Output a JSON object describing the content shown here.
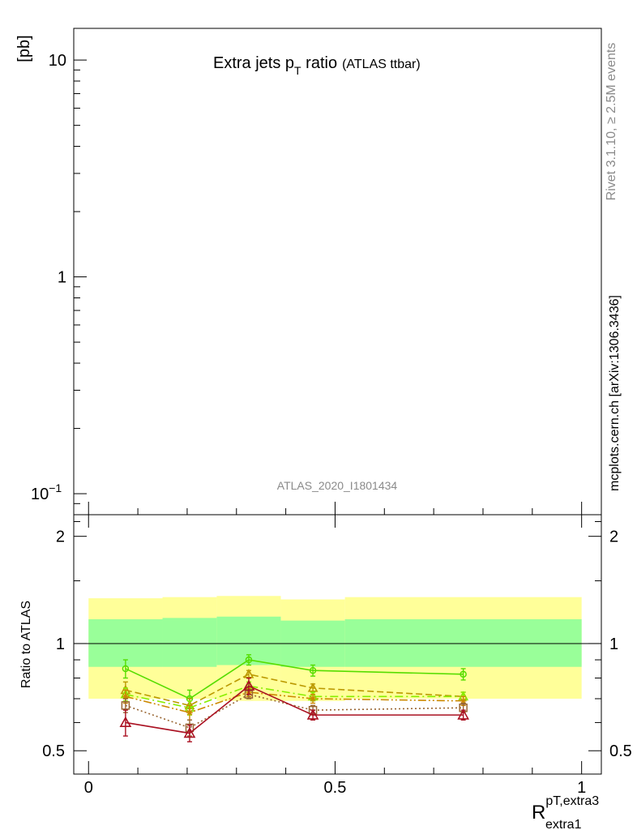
{
  "chart_data": {
    "type": "line",
    "title_main": "Extra jets p",
    "title_sub_T": "T",
    "title_rest": " ratio",
    "title_small": "(ATLAS ttbar)",
    "analysis_label": "ATLAS_2020_I1801434",
    "side_text_1": "Rivet 3.1.10, ≥ 2.5M events",
    "side_text_2": "mcplots.cern.ch [arXiv:1306.3436]",
    "top_panel": {
      "ylabel": "[pb]",
      "yscale": "log",
      "ylim": [
        0.08,
        14
      ],
      "yticks": [
        {
          "value": 10,
          "label": "10"
        },
        {
          "value": 1,
          "label": "1"
        },
        {
          "value": 0.1,
          "label_base": "10",
          "label_exp": "−1"
        }
      ]
    },
    "ratio_panel": {
      "ylabel": "Ratio to ATLAS",
      "yscale": "log",
      "ylim": [
        0.43,
        2.3
      ],
      "yticks": [
        {
          "value": 2,
          "label": "2"
        },
        {
          "value": 1,
          "label": "1"
        },
        {
          "value": 0.5,
          "label": "0.5"
        }
      ],
      "reference_line": 1,
      "bands": {
        "bins": [
          0,
          0.15,
          0.26,
          0.39,
          0.52,
          1.0
        ],
        "outer_lo": [
          0.7,
          0.7,
          0.69,
          0.69,
          0.7
        ],
        "outer_hi": [
          1.34,
          1.35,
          1.36,
          1.33,
          1.35
        ],
        "inner_lo": [
          0.86,
          0.86,
          0.87,
          0.86,
          0.86
        ],
        "inner_hi": [
          1.17,
          1.18,
          1.19,
          1.16,
          1.17
        ],
        "outer_color": "#ffff99",
        "inner_color": "#99ff99"
      }
    },
    "x_axis": {
      "label_main": "R",
      "label_super": "pT,extra3",
      "label_sub": "extra1",
      "xlim": [
        -0.03,
        1.04
      ],
      "ticks": [
        {
          "value": 0,
          "label": "0"
        },
        {
          "value": 0.5,
          "label": "0.5"
        },
        {
          "value": 1,
          "label": "1"
        }
      ]
    },
    "x": [
      0.075,
      0.205,
      0.325,
      0.455,
      0.76
    ],
    "series": [
      {
        "color": "#55dd00",
        "marker": "circle",
        "dash": "",
        "values": [
          0.85,
          0.7,
          0.9,
          0.84,
          0.82
        ],
        "errors": [
          0.05,
          0.04,
          0.03,
          0.03,
          0.03
        ]
      },
      {
        "color": "#bb9900",
        "marker": "triangle",
        "dash": "8,4",
        "values": [
          0.74,
          0.67,
          0.82,
          0.75,
          0.71
        ],
        "errors": [
          0.04,
          0.03,
          0.02,
          0.02,
          0.02
        ]
      },
      {
        "color": "#88ee00",
        "marker": "triangle",
        "dash": "10,4,2,4",
        "values": [
          0.72,
          0.66,
          0.76,
          0.71,
          0.71
        ],
        "errors": [
          0.03,
          0.03,
          0.02,
          0.02,
          0.02
        ]
      },
      {
        "color": "#cc8800",
        "marker": "star",
        "dash": "10,3,2,3,2,3",
        "values": [
          0.71,
          0.64,
          0.73,
          0.7,
          0.69
        ],
        "errors": [
          0.03,
          0.03,
          0.02,
          0.02,
          0.02
        ]
      },
      {
        "color": "#996633",
        "marker": "square",
        "dash": "2,3",
        "values": [
          0.67,
          0.58,
          0.72,
          0.65,
          0.66
        ],
        "errors": [
          0.03,
          0.03,
          0.02,
          0.02,
          0.02
        ]
      },
      {
        "color": "#aa1122",
        "marker": "triangle-open",
        "dash": "",
        "values": [
          0.6,
          0.56,
          0.76,
          0.63,
          0.63
        ],
        "errors": [
          0.05,
          0.03,
          0.04,
          0.02,
          0.02
        ]
      }
    ]
  }
}
